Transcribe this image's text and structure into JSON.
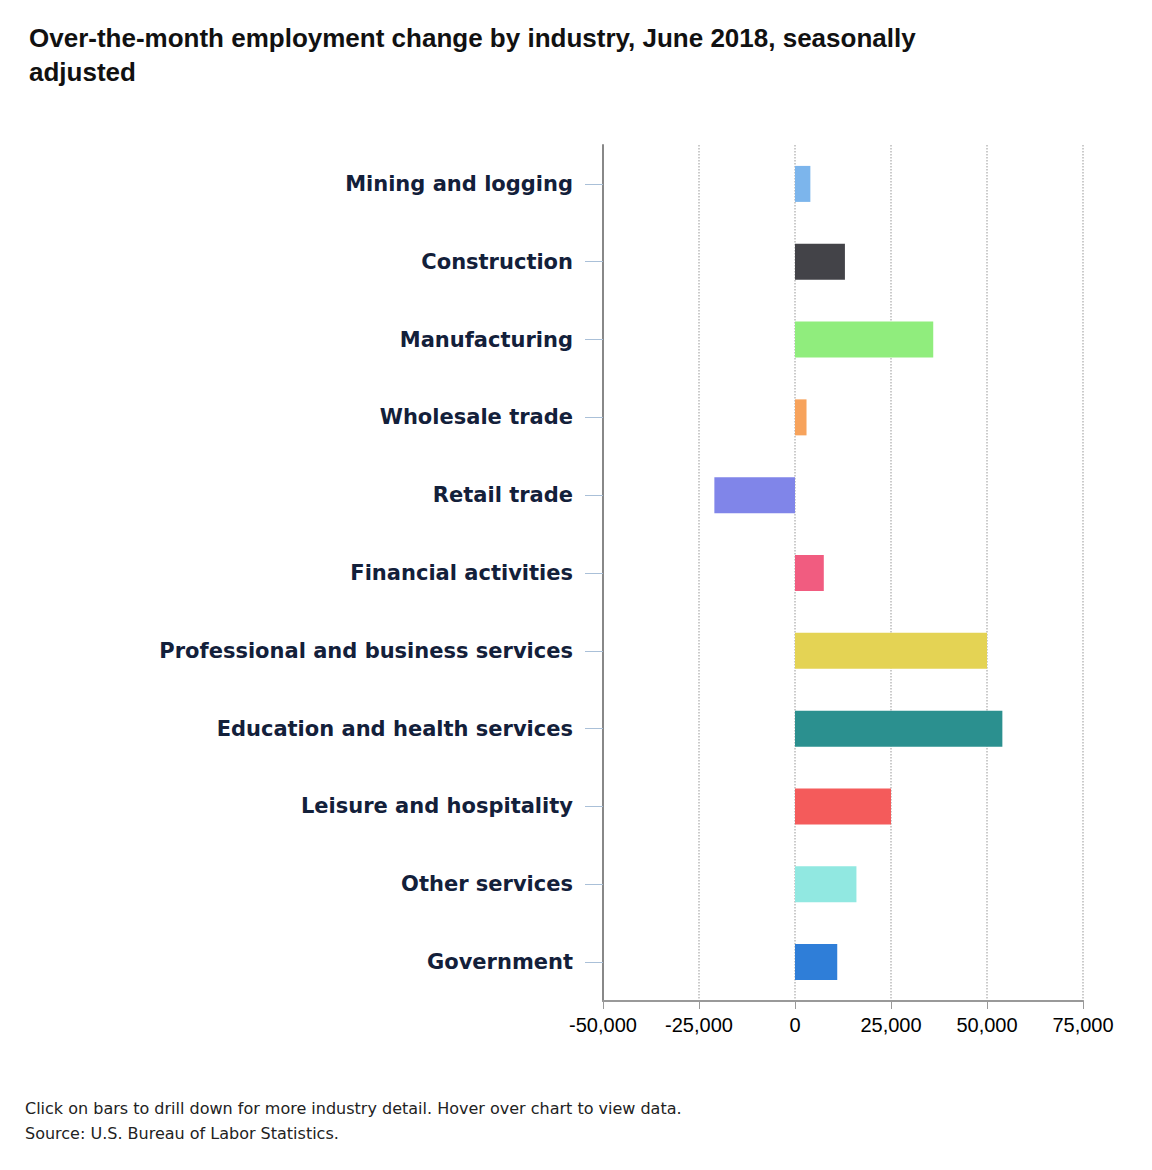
{
  "chart_data": {
    "type": "bar",
    "orientation": "horizontal",
    "title": "Over-the-month employment change by industry, June 2018, seasonally adjusted",
    "categories": [
      "Mining and logging",
      "Construction",
      "Manufacturing",
      "Wholesale trade",
      "Retail trade",
      "Financial activities",
      "Professional and business services",
      "Education and health services",
      "Leisure and hospitality",
      "Other services",
      "Government"
    ],
    "values": [
      4000,
      13000,
      36000,
      3000,
      -21000,
      7500,
      50000,
      54000,
      25000,
      16000,
      11000
    ],
    "colors": [
      "#7cb5ec",
      "#434348",
      "#90ed7d",
      "#f7a35c",
      "#8085e9",
      "#f15c80",
      "#e4d354",
      "#2b908f",
      "#f45b5b",
      "#91e8e1",
      "#2f7ed8"
    ],
    "xlim": [
      -50000,
      75000
    ],
    "xticks": [
      {
        "value": -50000,
        "label": "-50,000"
      },
      {
        "value": -25000,
        "label": "-25,000"
      },
      0,
      {
        "value": 25000,
        "label": "25,000"
      },
      {
        "value": 50000,
        "label": "50,000"
      },
      {
        "value": 75000,
        "label": "75,000"
      }
    ],
    "grid": true,
    "annotations": [
      "Click on bars to drill down for more industry detail. Hover over chart to view data.",
      "Source: U.S. Bureau of Labor Statistics."
    ]
  }
}
